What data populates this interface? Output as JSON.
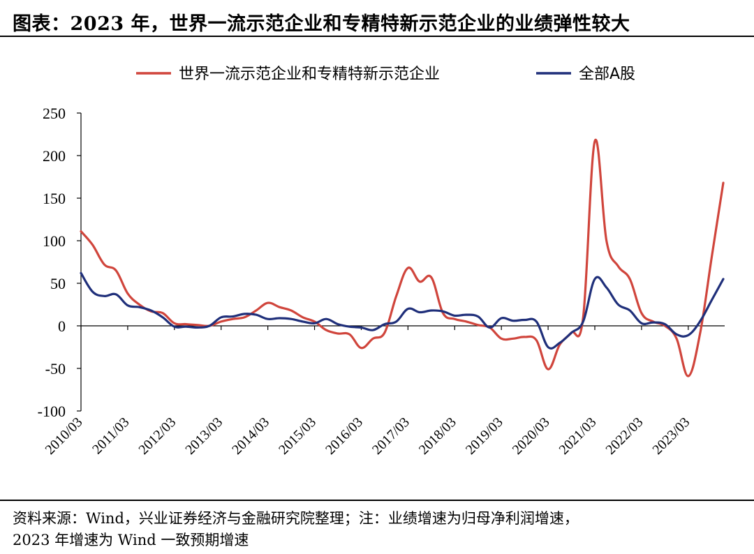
{
  "title": "图表：2023 年，世界一流示范企业和专精特新示范企业的业绩弹性较大",
  "source_line1": "资料来源：Wind，兴业证券经济与金融研究院整理；注：业绩增速为归母净利润增速，",
  "source_line2": "2023 年增速为 Wind 一致预期增速",
  "chart_data": {
    "type": "line",
    "x": [
      "2010/03",
      "2010/06",
      "2010/09",
      "2010/12",
      "2011/03",
      "2011/06",
      "2011/09",
      "2011/12",
      "2012/03",
      "2012/06",
      "2012/09",
      "2012/12",
      "2013/03",
      "2013/06",
      "2013/09",
      "2013/12",
      "2014/03",
      "2014/06",
      "2014/09",
      "2014/12",
      "2015/03",
      "2015/06",
      "2015/09",
      "2015/12",
      "2016/03",
      "2016/06",
      "2016/09",
      "2016/12",
      "2017/03",
      "2017/06",
      "2017/09",
      "2017/12",
      "2018/03",
      "2018/06",
      "2018/09",
      "2018/12",
      "2019/03",
      "2019/06",
      "2019/09",
      "2019/12",
      "2020/03",
      "2020/06",
      "2020/09",
      "2020/12",
      "2021/03",
      "2021/06",
      "2021/09",
      "2021/12",
      "2022/03",
      "2022/06",
      "2022/09",
      "2022/12",
      "2023/03",
      "2023/06",
      "2023/09",
      "2023/12"
    ],
    "series": [
      {
        "name": "世界一流示范企业和专精特新示范企业",
        "color": "#d0453c",
        "values": [
          111,
          95,
          72,
          65,
          38,
          25,
          17,
          15,
          3,
          2,
          1,
          0,
          5,
          8,
          10,
          18,
          27,
          22,
          18,
          10,
          5,
          -5,
          -9,
          -10,
          -26,
          -15,
          -8,
          35,
          68,
          52,
          57,
          15,
          8,
          5,
          1,
          -2,
          -15,
          -15,
          -13,
          -17,
          -51,
          -22,
          -8,
          10,
          217,
          100,
          70,
          55,
          15,
          5,
          0,
          -15,
          -59,
          -10,
          80,
          168
        ]
      },
      {
        "name": "全部A股",
        "color": "#1f2f7a",
        "values": [
          62,
          40,
          35,
          37,
          24,
          22,
          18,
          10,
          -1,
          -1,
          -2,
          0,
          10,
          11,
          14,
          13,
          8,
          9,
          8,
          5,
          3,
          8,
          2,
          -1,
          -2,
          -5,
          2,
          5,
          20,
          16,
          18,
          17,
          12,
          13,
          11,
          -2,
          9,
          6,
          7,
          5,
          -25,
          -20,
          -8,
          5,
          55,
          45,
          25,
          18,
          3,
          4,
          2,
          -10,
          -11,
          5,
          30,
          55
        ]
      }
    ],
    "ylim": [
      -100,
      250
    ],
    "yticks": [
      250,
      200,
      150,
      100,
      50,
      0,
      -50,
      -100
    ],
    "xtick_labels": [
      "2010/03",
      "2011/03",
      "2012/03",
      "2013/03",
      "2014/03",
      "2015/03",
      "2016/03",
      "2017/03",
      "2018/03",
      "2019/03",
      "2020/03",
      "2021/03",
      "2022/03",
      "2023/03"
    ],
    "grid": false,
    "legend": "top-center"
  }
}
